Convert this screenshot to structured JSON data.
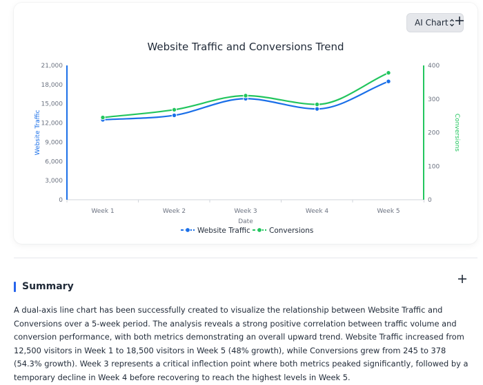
{
  "toolbar": {
    "chart_type_label": "AI Chart"
  },
  "summary": {
    "title": "Summary",
    "text": "A dual-axis line chart has been successfully created to visualize the relationship between Website Traffic and Conversions over a 5-week period. The analysis reveals a strong positive correlation between traffic volume and conversion performance, with both metrics demonstrating an overall upward trend. Website Traffic increased from 12,500 visitors in Week 1 to 18,500 visitors in Week 5 (48% growth), while Conversions grew from 245 to 378 (54.3% growth). Week 3 represents a critical inflection point where both metrics peaked significantly, followed by a temporary decline in Week 4 before recovering to reach the highest levels in Week 5."
  },
  "colors": {
    "traffic": "#1a6fe8",
    "conversions": "#22c55e",
    "axis_text": "#6b7280",
    "grid": "#e5e7eb"
  },
  "chart_data": {
    "type": "line",
    "title": "Website Traffic and Conversions Trend",
    "xlabel": "Date",
    "categories": [
      "Week 1",
      "Week 2",
      "Week 3",
      "Week 4",
      "Week 5"
    ],
    "y_left": {
      "label": "Website Traffic",
      "range": [
        0,
        21000
      ],
      "ticks": [
        "0",
        "3,000",
        "6,000",
        "9,000",
        "12,000",
        "15,000",
        "18,000",
        "21,000"
      ]
    },
    "y_right": {
      "label": "Conversions",
      "range": [
        0,
        400
      ],
      "ticks": [
        "0",
        "100",
        "200",
        "300",
        "400"
      ]
    },
    "series": [
      {
        "name": "Website Traffic",
        "axis": "left",
        "values": [
          12500,
          13200,
          15800,
          14200,
          18500
        ]
      },
      {
        "name": "Conversions",
        "axis": "right",
        "values": [
          245,
          268,
          310,
          284,
          378
        ]
      }
    ],
    "legend_position": "bottom",
    "grid": false
  }
}
